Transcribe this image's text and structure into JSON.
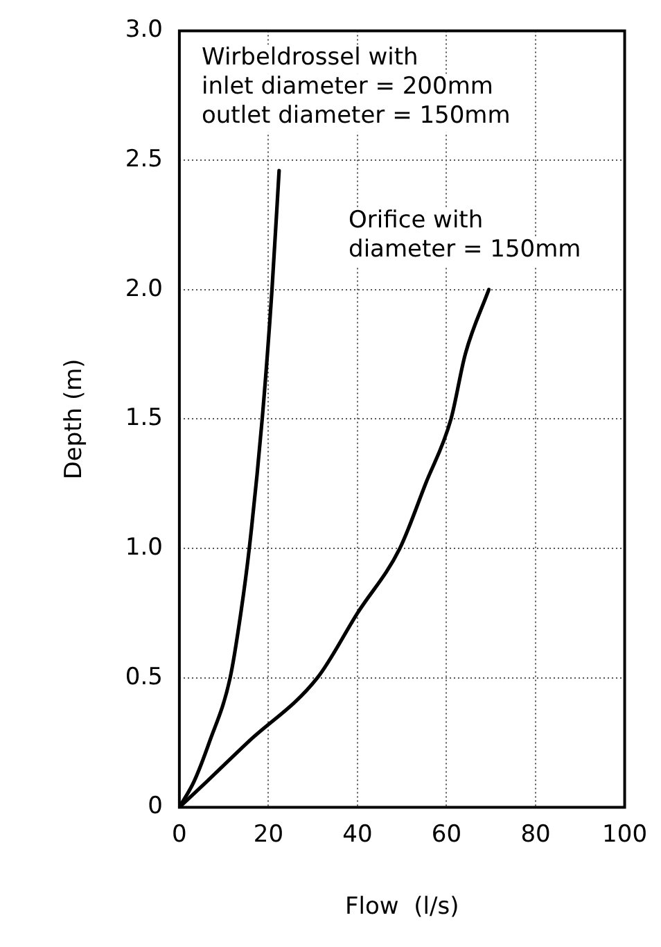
{
  "chart_data": {
    "type": "line",
    "xlabel": "Flow  (l/s)",
    "ylabel": "Depth (m)",
    "xlim": [
      0,
      100
    ],
    "xticks": [
      0,
      20,
      40,
      60,
      80,
      100
    ],
    "ylim": [
      0,
      3
    ],
    "yticks": [
      0,
      {
        "value": 0.5,
        "label": "0.5"
      },
      {
        "value": 1,
        "label": "1.0"
      },
      {
        "value": 1.5,
        "label": "1.5"
      },
      {
        "value": 2,
        "label": "2.0"
      },
      {
        "value": 2.5,
        "label": "2.5"
      },
      {
        "value": 3,
        "label": "3.0"
      }
    ],
    "grid": true,
    "legend": false,
    "marker": "none",
    "line_style": "solid",
    "series": [
      {
        "color": "#000000",
        "x": [
          0,
          3.3,
          6.7,
          11.4,
          13.8,
          15.7,
          18.6,
          20.8,
          22.4
        ],
        "values": [
          0,
          0.1,
          0.25,
          0.5,
          0.75,
          1,
          1.5,
          2,
          2.46
        ]
      },
      {
        "color": "#000000",
        "x": [
          0,
          6.2,
          15.3,
          31,
          40,
          49.5,
          55.3,
          61,
          64.2,
          69.5
        ],
        "values": [
          0,
          0.1,
          0.25,
          0.5,
          0.75,
          1,
          1.25,
          1.5,
          1.75,
          2
        ]
      }
    ],
    "annotations": [
      "Wirbeldrossel with\ninlet diameter = 200mm\noutlet diameter = 150mm",
      "Orifice with\ndiameter = 150mm"
    ]
  }
}
